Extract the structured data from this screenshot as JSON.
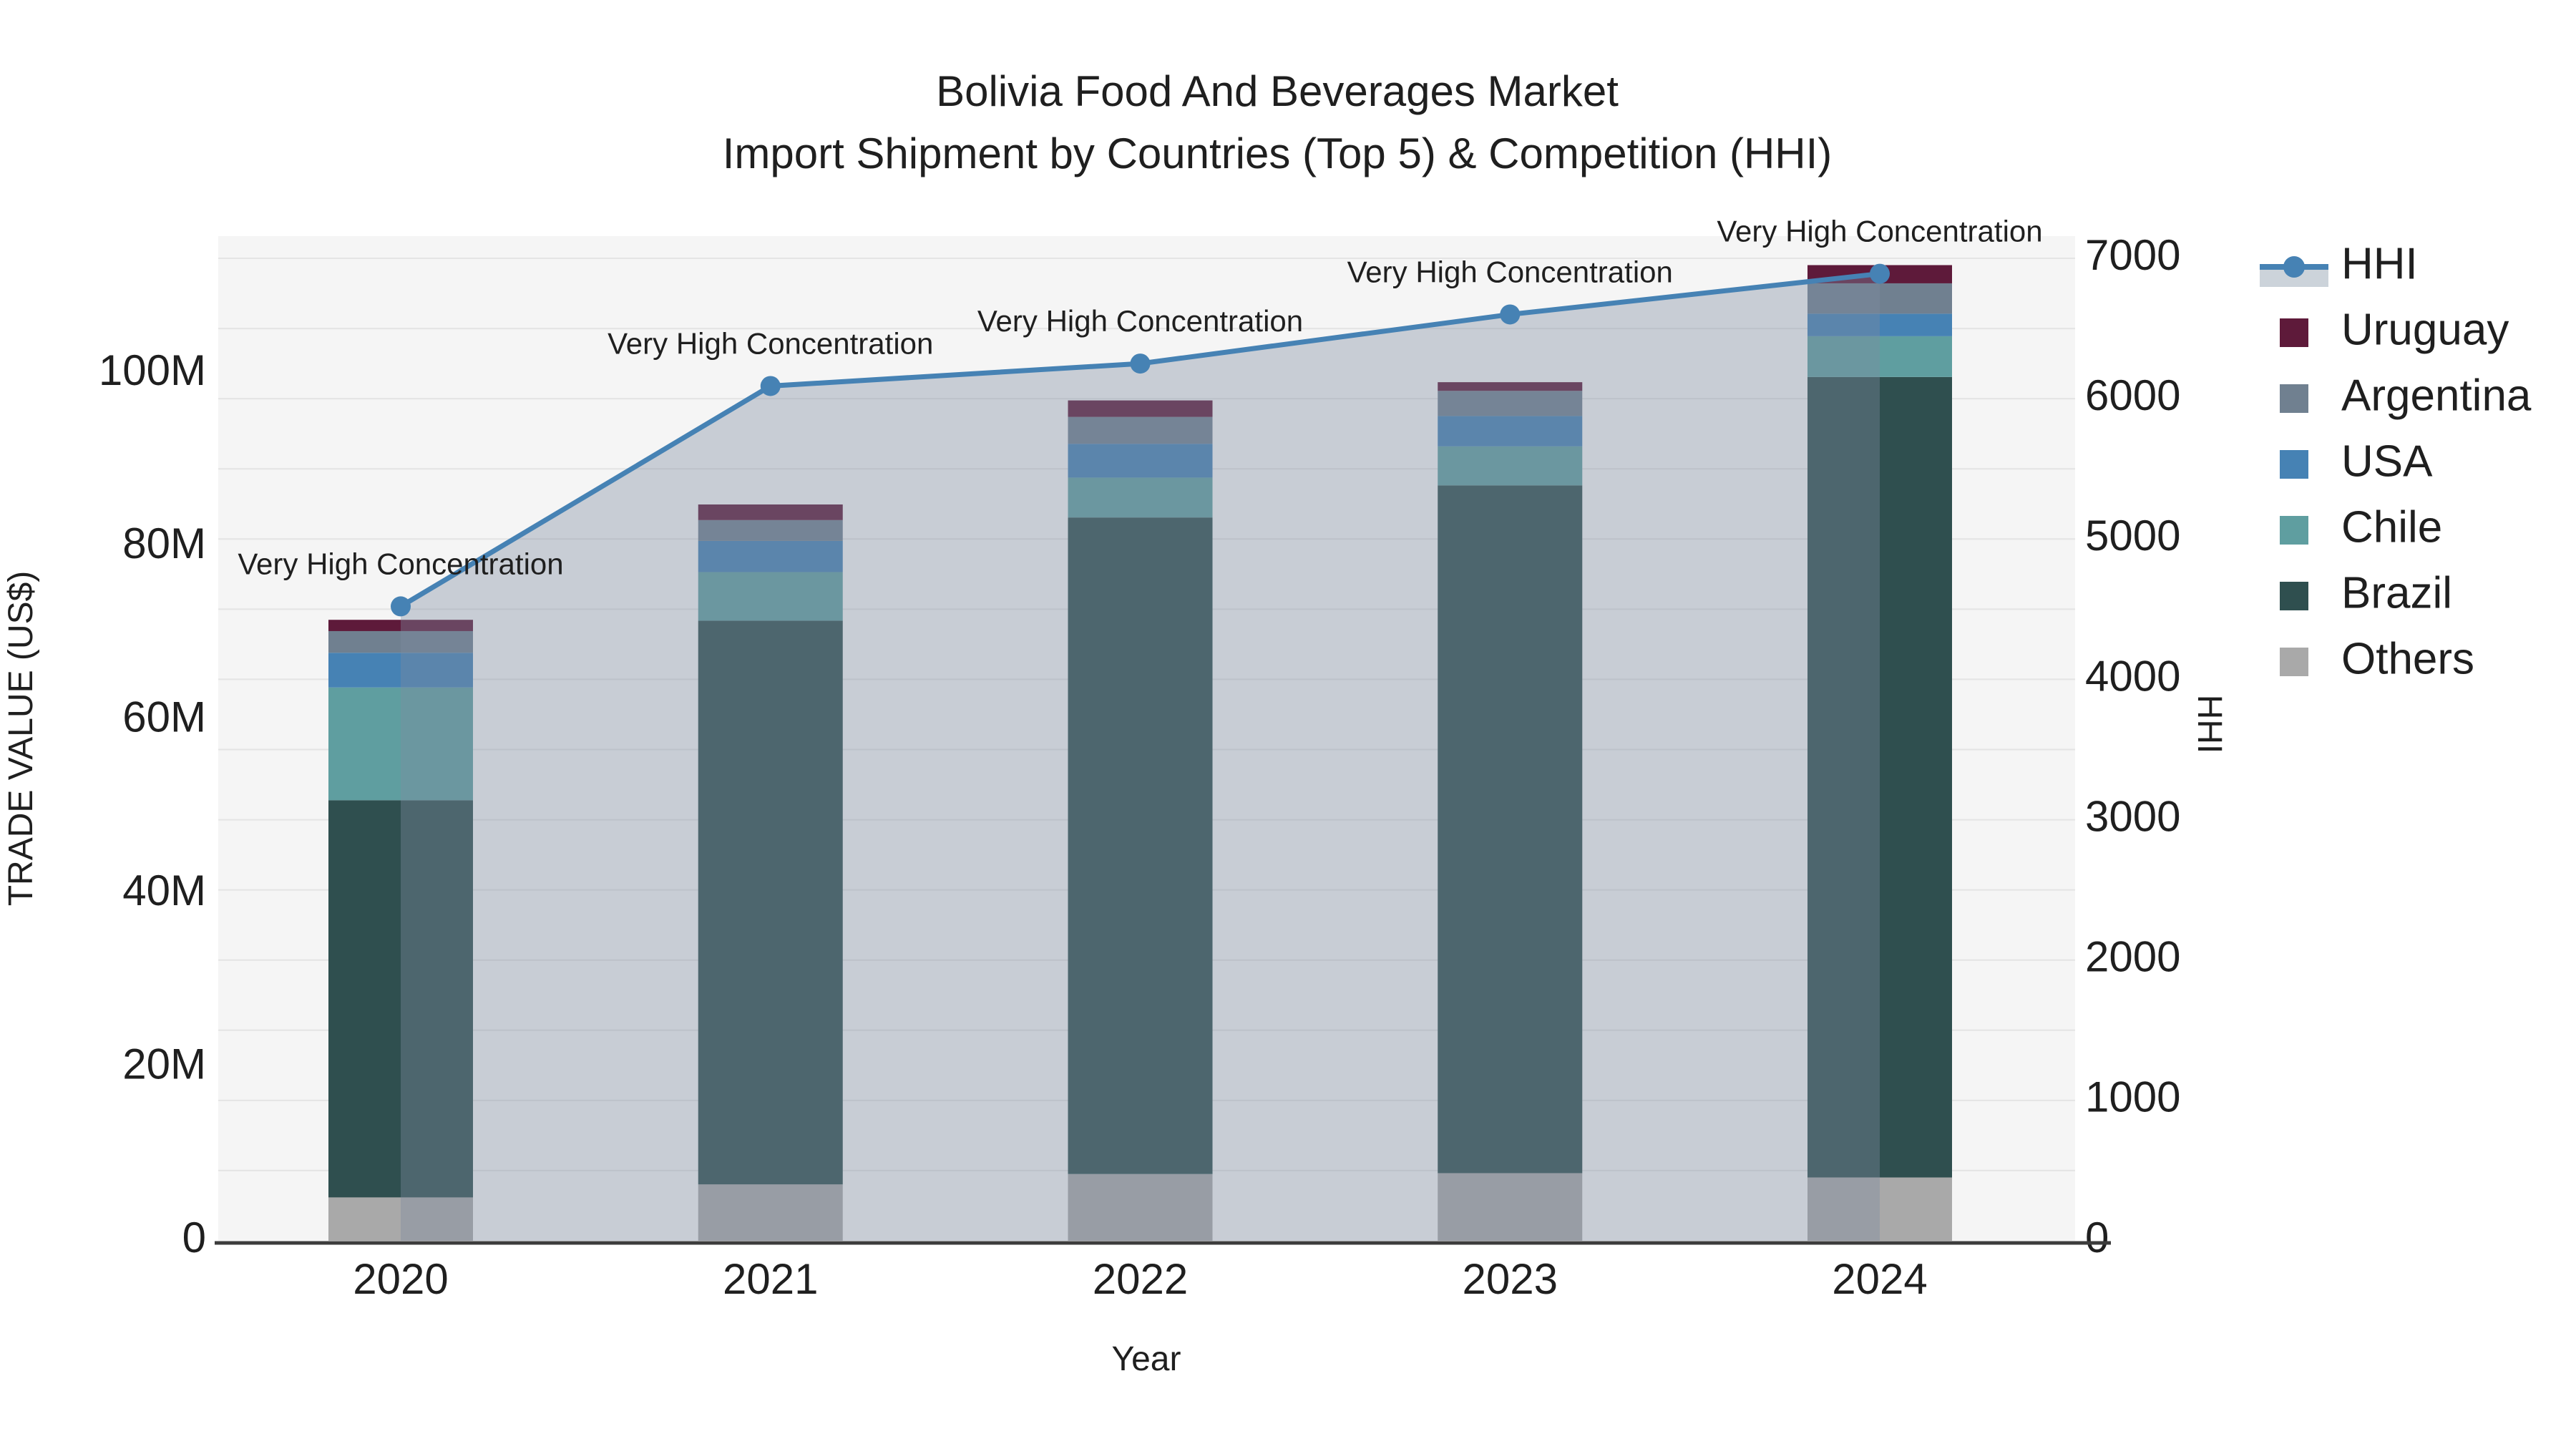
{
  "title": {
    "line1": "Bolivia Food And Beverages Market",
    "line2": "Import Shipment by Countries (Top 5) & Competition (HHI)"
  },
  "chart_data": {
    "type": "bar+line",
    "categories": [
      "2020",
      "2021",
      "2022",
      "2023",
      "2024"
    ],
    "stack_order_note": "bars stacked bottom-to-top in listed order; values are US$ millions",
    "series": [
      {
        "name": "Others",
        "color": "#a9a9a9",
        "values": [
          5.0,
          6.5,
          7.7,
          7.8,
          7.3
        ]
      },
      {
        "name": "Brazil",
        "color": "#2f4f4f",
        "values": [
          45.8,
          65.0,
          75.7,
          79.3,
          92.3
        ]
      },
      {
        "name": "Chile",
        "color": "#5f9ea0",
        "values": [
          13.0,
          5.6,
          4.6,
          4.5,
          4.7
        ]
      },
      {
        "name": "USA",
        "color": "#4682b4",
        "values": [
          4.0,
          3.6,
          3.9,
          3.5,
          2.6
        ]
      },
      {
        "name": "Argentina",
        "color": "#708090",
        "values": [
          2.5,
          2.4,
          3.1,
          2.9,
          3.5
        ]
      },
      {
        "name": "Uruguay",
        "color": "#5e1a3a",
        "values": [
          1.3,
          1.8,
          1.9,
          1.0,
          2.1
        ]
      }
    ],
    "bar_totals_musd": [
      71.6,
      84.9,
      96.9,
      99.0,
      112.5
    ],
    "line_series": {
      "name": "HHI",
      "color": "#4682b4",
      "fill_color": "rgba(125,140,160,0.38)",
      "values": [
        4520,
        6090,
        6250,
        6600,
        6890
      ]
    },
    "annotations": [
      "Very High Concentration",
      "Very High Concentration",
      "Very High Concentration",
      "Very High Concentration",
      "Very High Concentration"
    ],
    "xlabel": "Year",
    "ylabel_left": "TRADE VALUE (US$)",
    "ylabel_right": "HHI",
    "y_left_ticks": [
      "0",
      "20M",
      "40M",
      "60M",
      "80M",
      "100M"
    ],
    "y_left_tick_values": [
      0,
      20,
      40,
      60,
      80,
      100
    ],
    "y_right_ticks": [
      "0",
      "1000",
      "2000",
      "3000",
      "4000",
      "5000",
      "6000",
      "7000"
    ],
    "y_right_tick_values": [
      0,
      1000,
      2000,
      3000,
      4000,
      5000,
      6000,
      7000
    ],
    "ylim_left_musd": [
      0,
      116
    ],
    "ylim_right_hhi": [
      0,
      7160
    ],
    "grid": "on",
    "legend_position": "right",
    "legend": [
      {
        "label": "HHI",
        "type": "line",
        "color": "#4682b4"
      },
      {
        "label": "Uruguay",
        "type": "square",
        "color": "#5e1a3a"
      },
      {
        "label": "Argentina",
        "type": "square",
        "color": "#708090"
      },
      {
        "label": "USA",
        "type": "square",
        "color": "#4682b4"
      },
      {
        "label": "Chile",
        "type": "square",
        "color": "#5f9ea0"
      },
      {
        "label": "Brazil",
        "type": "square",
        "color": "#2f4f4f"
      },
      {
        "label": "Others",
        "type": "square",
        "color": "#a9a9a9"
      }
    ],
    "colors": {
      "plot_background": "#f5f5f5",
      "gridline": "#e4e4e4",
      "axis_line": "#3c3c3c",
      "hhi_legend_fill_swatch": "#ccd3da"
    }
  }
}
